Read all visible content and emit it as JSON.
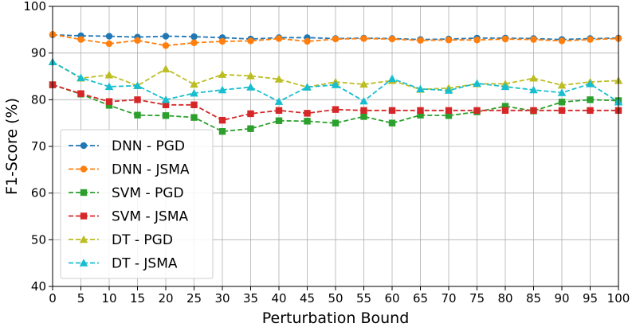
{
  "chart_data": {
    "type": "line",
    "title": "",
    "xlabel": "Perturbation Bound",
    "ylabel": "F1-Score (%)",
    "x": [
      0,
      5,
      10,
      15,
      20,
      25,
      30,
      35,
      40,
      45,
      50,
      55,
      60,
      65,
      70,
      75,
      80,
      85,
      90,
      95,
      100
    ],
    "xticks": [
      0,
      5,
      10,
      15,
      20,
      25,
      30,
      35,
      40,
      45,
      50,
      55,
      60,
      65,
      70,
      75,
      80,
      85,
      90,
      95,
      100
    ],
    "yticks": [
      40,
      50,
      60,
      70,
      80,
      90,
      100
    ],
    "xlim": [
      0,
      100
    ],
    "ylim": [
      40,
      100
    ],
    "grid": true,
    "legend_position": "center-left",
    "series": [
      {
        "name": "DNN - PGD",
        "color": "#1f77b4",
        "marker": "circle",
        "values": [
          93.9,
          93.7,
          93.6,
          93.4,
          93.6,
          93.5,
          93.3,
          93.0,
          93.3,
          93.3,
          93.1,
          93.2,
          93.1,
          92.9,
          93.0,
          93.2,
          93.2,
          93.1,
          92.9,
          93.1,
          93.2
        ]
      },
      {
        "name": "DNN - JSMA",
        "color": "#ff7f0e",
        "marker": "circle",
        "values": [
          94.0,
          92.9,
          92.0,
          92.7,
          91.6,
          92.2,
          92.5,
          92.6,
          93.1,
          92.5,
          93.0,
          93.1,
          93.0,
          92.7,
          92.8,
          92.8,
          93.0,
          92.9,
          92.6,
          92.9,
          93.1
        ]
      },
      {
        "name": "SVM - PGD",
        "color": "#2ca02c",
        "marker": "square",
        "values": [
          83.2,
          81.2,
          78.8,
          76.7,
          76.6,
          76.2,
          73.2,
          73.8,
          75.5,
          75.4,
          75.0,
          76.4,
          75.0,
          76.7,
          76.6,
          77.4,
          78.6,
          77.6,
          79.5,
          80.0,
          79.8
        ]
      },
      {
        "name": "SVM - JSMA",
        "color": "#d62728",
        "marker": "square",
        "values": [
          83.2,
          81.3,
          79.6,
          80.0,
          78.9,
          78.9,
          75.6,
          77.0,
          77.7,
          77.1,
          77.9,
          77.7,
          77.7,
          77.7,
          77.7,
          77.7,
          77.7,
          77.7,
          77.7,
          77.7,
          77.7
        ]
      },
      {
        "name": "DT - PGD",
        "color": "#bcbd22",
        "marker": "triangle",
        "values": [
          88.1,
          84.6,
          85.3,
          83.0,
          86.6,
          83.3,
          85.4,
          85.1,
          84.4,
          82.7,
          83.8,
          83.3,
          84.1,
          82.2,
          82.5,
          83.4,
          83.4,
          84.6,
          83.1,
          83.8,
          84.1
        ]
      },
      {
        "name": "DT - JSMA",
        "color": "#17becf",
        "marker": "triangle",
        "values": [
          88.1,
          84.7,
          82.8,
          83.0,
          80.0,
          81.4,
          82.1,
          82.7,
          79.6,
          82.7,
          83.2,
          79.7,
          84.5,
          82.3,
          82.0,
          83.5,
          82.8,
          82.1,
          81.5,
          83.4,
          79.5
        ]
      }
    ]
  }
}
